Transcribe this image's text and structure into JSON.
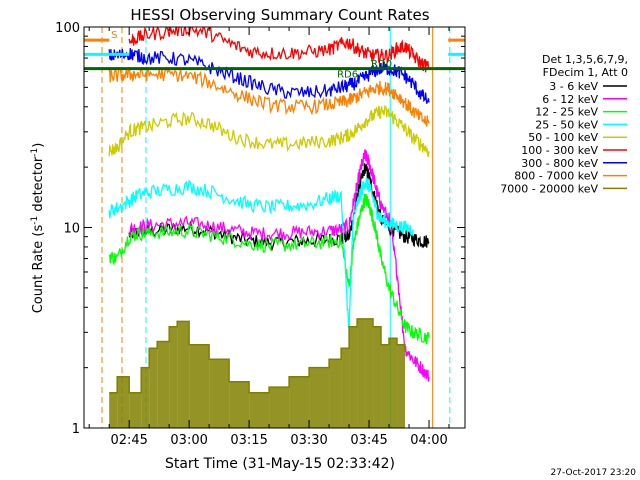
{
  "chart_data": {
    "type": "line",
    "title": "HESSI Observing Summary Count Rates",
    "xlabel": "Start Time (31-May-15 02:33:42)",
    "ylabel_main": "Count Rate (s",
    "ylabel_sup1": "-1",
    "ylabel_mid": " detector",
    "ylabel_sup2": "-1",
    "ylabel_end": ")",
    "yscale": "log",
    "ylim": [
      1,
      100
    ],
    "xlim_minutes": [
      33.7,
      129.0
    ],
    "x_ticks": [
      {
        "label": "02:45",
        "minute": 45
      },
      {
        "label": "03:00",
        "minute": 60
      },
      {
        "label": "03:15",
        "minute": 75
      },
      {
        "label": "03:30",
        "minute": 90
      },
      {
        "label": "03:45",
        "minute": 105
      },
      {
        "label": "04:00",
        "minute": 120
      }
    ],
    "y_ticks": [
      {
        "label": "1",
        "value": 1
      },
      {
        "label": "10",
        "value": 10
      },
      {
        "label": "100",
        "value": 100
      }
    ],
    "legend_header": [
      "Det 1,3,5,6,7,9,",
      "FDecim 1, Att 0"
    ],
    "legend_placement": "right",
    "timestamp": "27-Oct-2017 23:20",
    "annotations": [
      {
        "text": "S",
        "minute": 40.5,
        "value": 88,
        "color": "#ff7f00"
      },
      {
        "text": "RD0",
        "minute": 105.5,
        "value": 63,
        "color": "#006400"
      },
      {
        "text": "RD6",
        "minute": 97,
        "value": 56,
        "color": "#006400"
      }
    ],
    "series": [
      {
        "name": "3 - 6 keV",
        "color": "#000000",
        "x": [
          45,
          47,
          50,
          55,
          60,
          65,
          70,
          75,
          80,
          85,
          90,
          95,
          98,
          100,
          101,
          102,
          103,
          104,
          105,
          106,
          107,
          108,
          110,
          112,
          114,
          116,
          118,
          120
        ],
        "y": [
          9.2,
          9.5,
          9.6,
          9.8,
          10.0,
          9.6,
          9.0,
          8.6,
          8.4,
          8.5,
          8.6,
          8.7,
          8.8,
          9.0,
          11,
          14,
          17,
          20,
          18,
          15,
          13,
          11,
          10,
          9.5,
          9.0,
          8.8,
          8.6,
          8.5
        ]
      },
      {
        "name": "6 - 12 keV",
        "color": "#ff00ff",
        "x": [
          45,
          47,
          50,
          55,
          60,
          65,
          70,
          75,
          80,
          85,
          90,
          95,
          98,
          100,
          101,
          102,
          103,
          104,
          105,
          106,
          107,
          108,
          110,
          112,
          114,
          116,
          118,
          120
        ],
        "y": [
          9.8,
          10.0,
          10.2,
          10.4,
          10.5,
          10.2,
          9.8,
          9.4,
          9.3,
          9.4,
          9.5,
          9.6,
          9.8,
          10.2,
          13,
          16,
          20,
          23,
          21,
          18,
          15,
          13,
          11,
          6,
          2.5,
          2.2,
          2.0,
          1.8
        ]
      },
      {
        "name": "12 - 25 keV",
        "color": "#00ff00",
        "x": [
          40,
          42,
          45,
          47,
          50,
          55,
          60,
          65,
          70,
          75,
          80,
          85,
          90,
          95,
          98,
          100,
          101,
          102,
          103,
          104,
          105,
          106,
          107,
          108,
          110,
          112,
          114,
          116,
          118,
          120
        ],
        "y": [
          7.2,
          7.0,
          9.0,
          9.3,
          9.4,
          9.5,
          9.6,
          9.2,
          8.8,
          8.3,
          8.1,
          8.2,
          8.3,
          8.5,
          8.6,
          5.0,
          8.0,
          10,
          12,
          14,
          13,
          11,
          9,
          7,
          5,
          4,
          3.2,
          3.0,
          2.9,
          2.8
        ]
      },
      {
        "name": "25 - 50 keV",
        "color": "#00ffff",
        "x": [
          40,
          42,
          45,
          47,
          50,
          55,
          60,
          65,
          70,
          75,
          80,
          85,
          90,
          95,
          98,
          100,
          101,
          102,
          103,
          104,
          105,
          106,
          107,
          108,
          110,
          112,
          114,
          116
        ],
        "y": [
          12,
          12.5,
          13.5,
          14.5,
          15,
          15.5,
          16,
          15.2,
          14,
          13,
          12.6,
          12.8,
          13,
          14,
          14.5,
          3,
          11,
          13,
          15,
          17,
          16,
          14,
          12,
          11,
          10.5,
          10.2,
          10.0,
          9.8
        ]
      },
      {
        "name": "50 - 100 keV",
        "color": "#cccc00",
        "x": [
          40,
          42,
          45,
          47,
          50,
          55,
          60,
          65,
          70,
          75,
          80,
          85,
          90,
          95,
          98,
          100,
          102,
          104,
          106,
          108,
          110,
          112,
          114,
          116,
          118,
          120
        ],
        "y": [
          24,
          25,
          30,
          31,
          32,
          34,
          35,
          33,
          29,
          27,
          26,
          26,
          26.5,
          27,
          28,
          29,
          31,
          34,
          36,
          38,
          37,
          34,
          31,
          28,
          26,
          24
        ]
      },
      {
        "name": "100 - 300 keV",
        "color": "#ff0000",
        "x": [
          45,
          47,
          50,
          55,
          60,
          65,
          70,
          75,
          80,
          85,
          90,
          95,
          98,
          100,
          102,
          104,
          106,
          108,
          110,
          112,
          114,
          116,
          118,
          120
        ],
        "y": [
          84,
          88,
          92,
          95,
          98,
          93,
          83,
          76,
          74,
          74,
          75,
          77,
          82,
          84,
          78,
          74,
          72,
          72,
          72,
          78,
          80,
          72,
          66,
          63
        ]
      },
      {
        "name": "300 - 800 keV",
        "color": "#0000ff",
        "x": [
          40,
          42,
          45,
          47,
          50,
          55,
          60,
          65,
          70,
          75,
          80,
          85,
          90,
          95,
          98,
          100,
          102,
          104,
          106,
          108,
          110,
          112,
          114,
          116,
          118,
          120
        ],
        "y": [
          72,
          72,
          74,
          72,
          70,
          70,
          68,
          63,
          58,
          53,
          49,
          47,
          47,
          48,
          50,
          51,
          53,
          56,
          60,
          62,
          62,
          60,
          57,
          52,
          46,
          42
        ]
      },
      {
        "name": "800 - 7000 keV",
        "color": "#ff7f00",
        "x": [
          40,
          42,
          45,
          47,
          50,
          55,
          60,
          65,
          70,
          75,
          80,
          85,
          90,
          95,
          98,
          100,
          102,
          104,
          106,
          108,
          110,
          112,
          114,
          116,
          118,
          120
        ],
        "y": [
          57,
          57,
          58,
          58,
          58,
          58,
          57,
          53,
          48,
          44,
          41,
          40,
          40,
          41,
          42,
          43,
          45,
          47,
          49,
          50,
          49,
          46,
          42,
          38,
          35,
          33
        ]
      },
      {
        "name": "7000 - 20000 keV",
        "color": "#808000",
        "x": [
          40,
          42,
          45,
          48,
          50,
          52,
          55,
          57,
          60,
          65,
          70,
          75,
          80,
          85,
          90,
          95,
          98,
          100,
          102,
          104,
          106,
          108,
          110,
          112,
          114
        ],
        "y": [
          1.5,
          1.8,
          1.5,
          2.0,
          2.5,
          2.7,
          3.2,
          3.4,
          2.6,
          2.2,
          1.7,
          1.5,
          1.6,
          1.8,
          2.0,
          2.2,
          2.5,
          3.2,
          3.5,
          3.5,
          3.2,
          2.6,
          2.8,
          2.6,
          2.4
        ]
      }
    ],
    "flag_lines": [
      {
        "color": "#006400",
        "x": [
          33.7,
          129.0
        ],
        "y": [
          62,
          62
        ]
      },
      {
        "color": "#00ffff",
        "x": [
          33.7,
          45.0
        ],
        "y": [
          73,
          73
        ]
      },
      {
        "color": "#ff7f00",
        "x": [
          33.7,
          40.0
        ],
        "y": [
          86,
          86
        ]
      },
      {
        "color": "#ff7f00",
        "x": [
          124.8,
          129.0
        ],
        "y": [
          86,
          86
        ]
      },
      {
        "color": "#00ffff",
        "x": [
          124.8,
          129.0
        ],
        "y": [
          73,
          73
        ]
      }
    ],
    "vlines": [
      {
        "minute": 38.2,
        "color": "#ff7f00",
        "dashed": true
      },
      {
        "minute": 43.2,
        "color": "#ff7f00",
        "dashed": true
      },
      {
        "minute": 49.2,
        "color": "#00ffff",
        "dashed": true
      },
      {
        "minute": 125.2,
        "color": "#00ffff",
        "dashed": true
      },
      {
        "minute": 110.3,
        "color": "#00ffff",
        "dashed": false
      },
      {
        "minute": 120.9,
        "color": "#ff7f00",
        "dashed": false
      }
    ]
  }
}
